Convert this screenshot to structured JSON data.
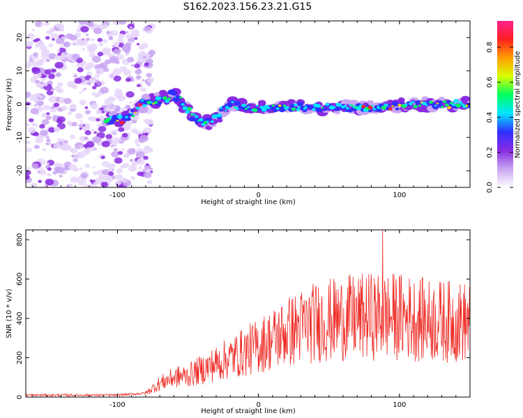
{
  "title": "S162.2023.156.23.21.G15",
  "chart_data": [
    {
      "type": "heatmap",
      "xlabel": "Height of straight line (km)",
      "ylabel": "Frequency (Hz)",
      "xlim": [
        -165,
        150
      ],
      "ylim": [
        -25,
        25
      ],
      "xticks": [
        -100,
        0,
        100
      ],
      "yticks": [
        -20,
        -10,
        0,
        10,
        20
      ],
      "colorbar": {
        "label": "Normalized spectral amplitude",
        "range": [
          0.0,
          0.95
        ],
        "ticks": [
          0.0,
          0.2,
          0.4,
          0.6,
          0.8
        ],
        "colormap": [
          "#ffffff",
          "#c9a6f2",
          "#8a2be2",
          "#3030ff",
          "#00e5ff",
          "#00ff60",
          "#d8ff00",
          "#ff9f00",
          "#ff2020",
          "#ff2090"
        ]
      },
      "ridge": {
        "x": [
          -100,
          -90,
          -80,
          -70,
          -60,
          -50,
          -40,
          -30,
          -20,
          -10,
          0,
          20,
          50,
          80,
          110,
          140,
          150
        ],
        "freq": [
          -5,
          -3,
          1,
          1,
          3,
          -2,
          -6,
          -4,
          0,
          -1,
          -1,
          -1,
          -1,
          -1,
          0,
          0,
          0
        ]
      },
      "noise_region": [
        -165,
        -80
      ]
    },
    {
      "type": "line",
      "xlabel": "Height of straight line (km)",
      "ylabel": "SNR (10 * v/v)",
      "xlim": [
        -165,
        150
      ],
      "ylim": [
        0,
        850
      ],
      "xticks": [
        -100,
        0,
        100
      ],
      "yticks": [
        0,
        200,
        400,
        600,
        800
      ],
      "color": "#ee2a24",
      "envelope": {
        "x": [
          -165,
          -100,
          -80,
          -70,
          -60,
          -50,
          -40,
          -30,
          -20,
          -10,
          0,
          20,
          40,
          60,
          80,
          100,
          120,
          150
        ],
        "mean": [
          10,
          10,
          20,
          70,
          100,
          110,
          140,
          170,
          200,
          230,
          260,
          330,
          380,
          400,
          410,
          410,
          390,
          380
        ]
      },
      "peak": {
        "x": 88,
        "y": 850
      }
    }
  ]
}
